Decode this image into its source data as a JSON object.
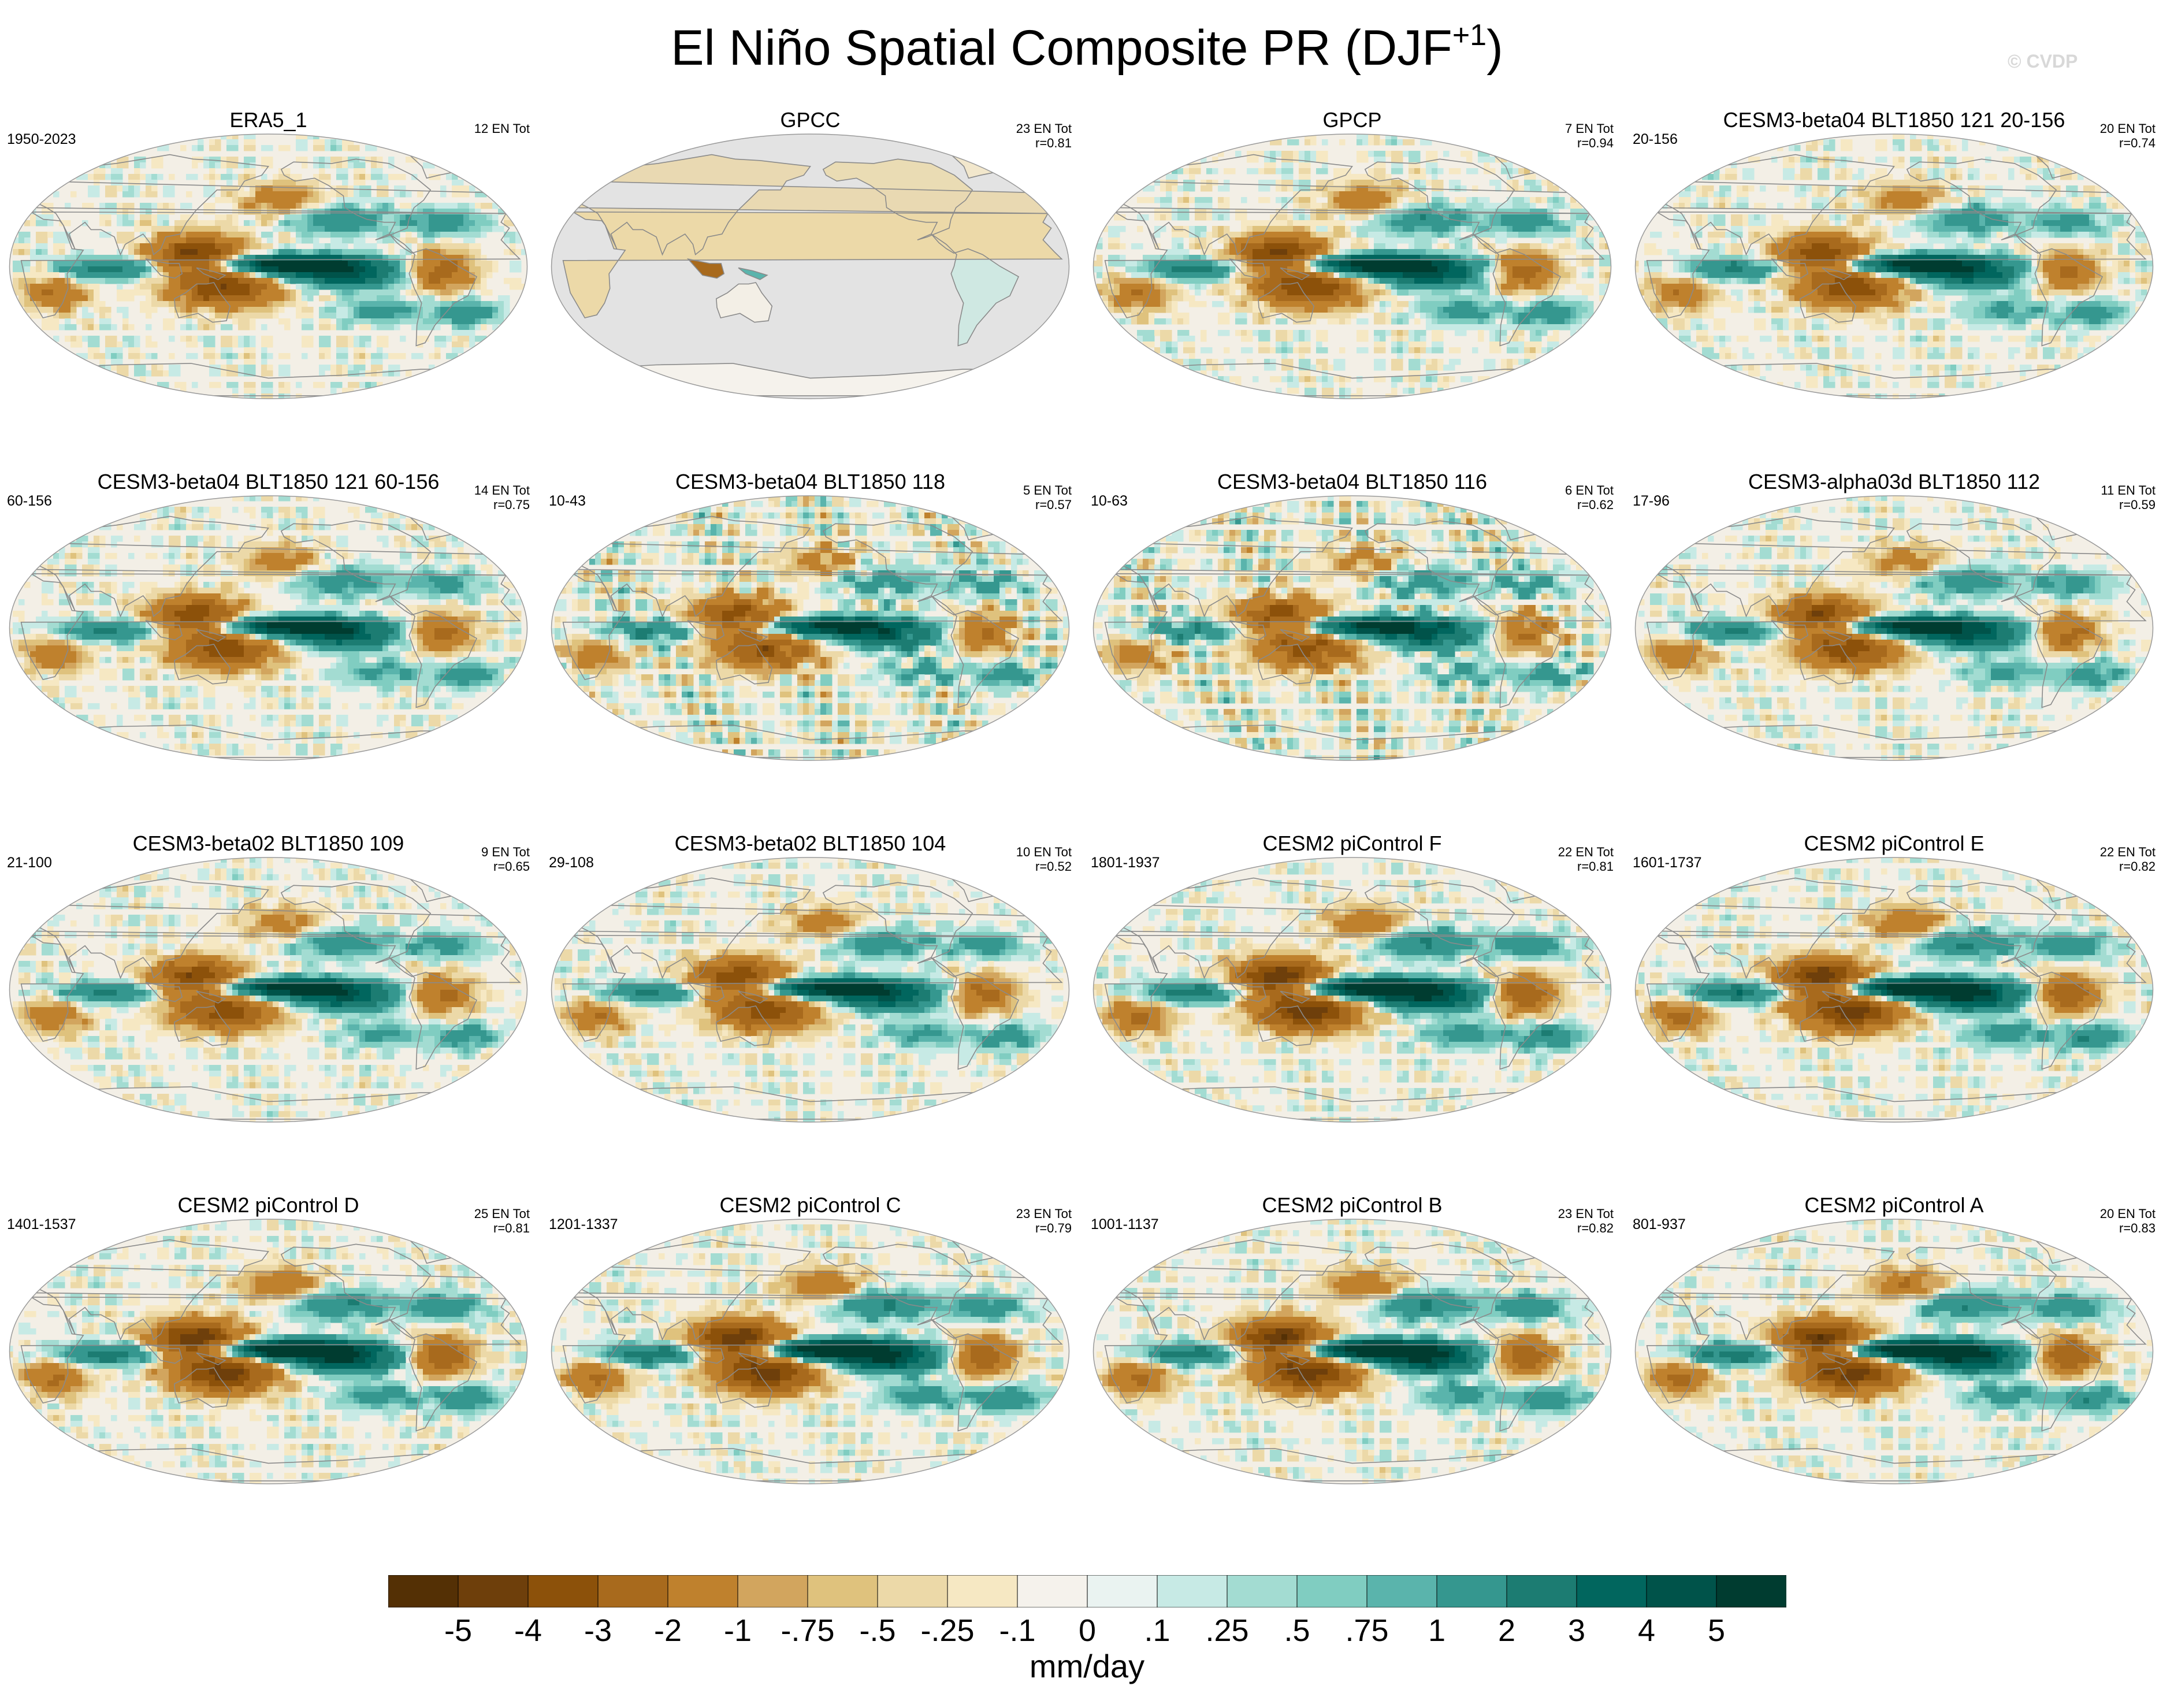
{
  "title": {
    "main": "El Niño Spatial Composite PR (DJF",
    "sup": "+1",
    "close": ")"
  },
  "watermark": "© CVDP",
  "colors": {
    "ocean_base": "#f3efe6",
    "no_data": "#e3e3e3",
    "coastline": "#8a8a8a",
    "map_border": "#9a9a9a"
  },
  "chart_data": {
    "type": "heatmap",
    "projection": "robinson",
    "variable": "PR",
    "season": "DJF+1",
    "composite": "El Niño",
    "panels": [
      {
        "title": "ERA5_1",
        "left": "1950-2023",
        "right1": "12 EN Tot",
        "right2": "",
        "pattern": "obs",
        "no_ocean": false
      },
      {
        "title": "GPCC",
        "left": "",
        "right1": "23 EN Tot",
        "right2": "r=0.81",
        "pattern": "land",
        "no_ocean": true
      },
      {
        "title": "GPCP",
        "left": "",
        "right1": "7 EN Tot",
        "right2": "r=0.94",
        "pattern": "obs",
        "no_ocean": false
      },
      {
        "title": "CESM3-beta04 BLT1850 121 20-156",
        "left": "20-156",
        "right1": "20 EN Tot",
        "right2": "r=0.74",
        "pattern": "model",
        "no_ocean": false
      },
      {
        "title": "CESM3-beta04 BLT1850 121 60-156",
        "left": "60-156",
        "right1": "14 EN Tot",
        "right2": "r=0.75",
        "pattern": "model",
        "no_ocean": false
      },
      {
        "title": "CESM3-beta04 BLT1850 118",
        "left": "10-43",
        "right1": "5 EN Tot",
        "right2": "r=0.57",
        "pattern": "noisy",
        "no_ocean": false
      },
      {
        "title": "CESM3-beta04 BLT1850 116",
        "left": "10-63",
        "right1": "6 EN Tot",
        "right2": "r=0.62",
        "pattern": "noisy",
        "no_ocean": false
      },
      {
        "title": "CESM3-alpha03d BLT1850 112",
        "left": "17-96",
        "right1": "11 EN Tot",
        "right2": "r=0.59",
        "pattern": "model",
        "no_ocean": false
      },
      {
        "title": "CESM3-beta02 BLT1850 109",
        "left": "21-100",
        "right1": "9 EN Tot",
        "right2": "r=0.65",
        "pattern": "model",
        "no_ocean": false
      },
      {
        "title": "CESM3-beta02 BLT1850 104",
        "left": "29-108",
        "right1": "10 EN Tot",
        "right2": "r=0.52",
        "pattern": "model",
        "no_ocean": false
      },
      {
        "title": "CESM2 piControl F",
        "left": "1801-1937",
        "right1": "22 EN Tot",
        "right2": "r=0.81",
        "pattern": "strong",
        "no_ocean": false
      },
      {
        "title": "CESM2 piControl E",
        "left": "1601-1737",
        "right1": "22 EN Tot",
        "right2": "r=0.82",
        "pattern": "strong",
        "no_ocean": false
      },
      {
        "title": "CESM2 piControl D",
        "left": "1401-1537",
        "right1": "25 EN Tot",
        "right2": "r=0.81",
        "pattern": "strong",
        "no_ocean": false
      },
      {
        "title": "CESM2 piControl C",
        "left": "1201-1337",
        "right1": "23 EN Tot",
        "right2": "r=0.79",
        "pattern": "strong",
        "no_ocean": false
      },
      {
        "title": "CESM2 piControl B",
        "left": "1001-1137",
        "right1": "23 EN Tot",
        "right2": "r=0.82",
        "pattern": "strong",
        "no_ocean": false
      },
      {
        "title": "CESM2 piControl A",
        "left": "801-937",
        "right1": "20 EN Tot",
        "right2": "r=0.83",
        "pattern": "strong",
        "no_ocean": false
      }
    ],
    "colorbar": {
      "units": "mm/day",
      "ticks": [
        "-5",
        "-4",
        "-3",
        "-2",
        "-1",
        "-.75",
        "-.5",
        "-.25",
        "-.1",
        "0",
        ".1",
        ".25",
        ".5",
        ".75",
        "1",
        "2",
        "3",
        "4",
        "5"
      ],
      "colors": [
        "#543005",
        "#6e3f0b",
        "#8c510a",
        "#a86a1d",
        "#bf812d",
        "#d2a55e",
        "#dfc27d",
        "#ecd9a8",
        "#f6e8c3",
        "#f5f2ec",
        "#eaf3f1",
        "#c7eae5",
        "#a3dcd2",
        "#80cdc1",
        "#5ab4ac",
        "#35978f",
        "#1c7c72",
        "#01665e",
        "#00534a",
        "#003c30"
      ]
    }
  }
}
